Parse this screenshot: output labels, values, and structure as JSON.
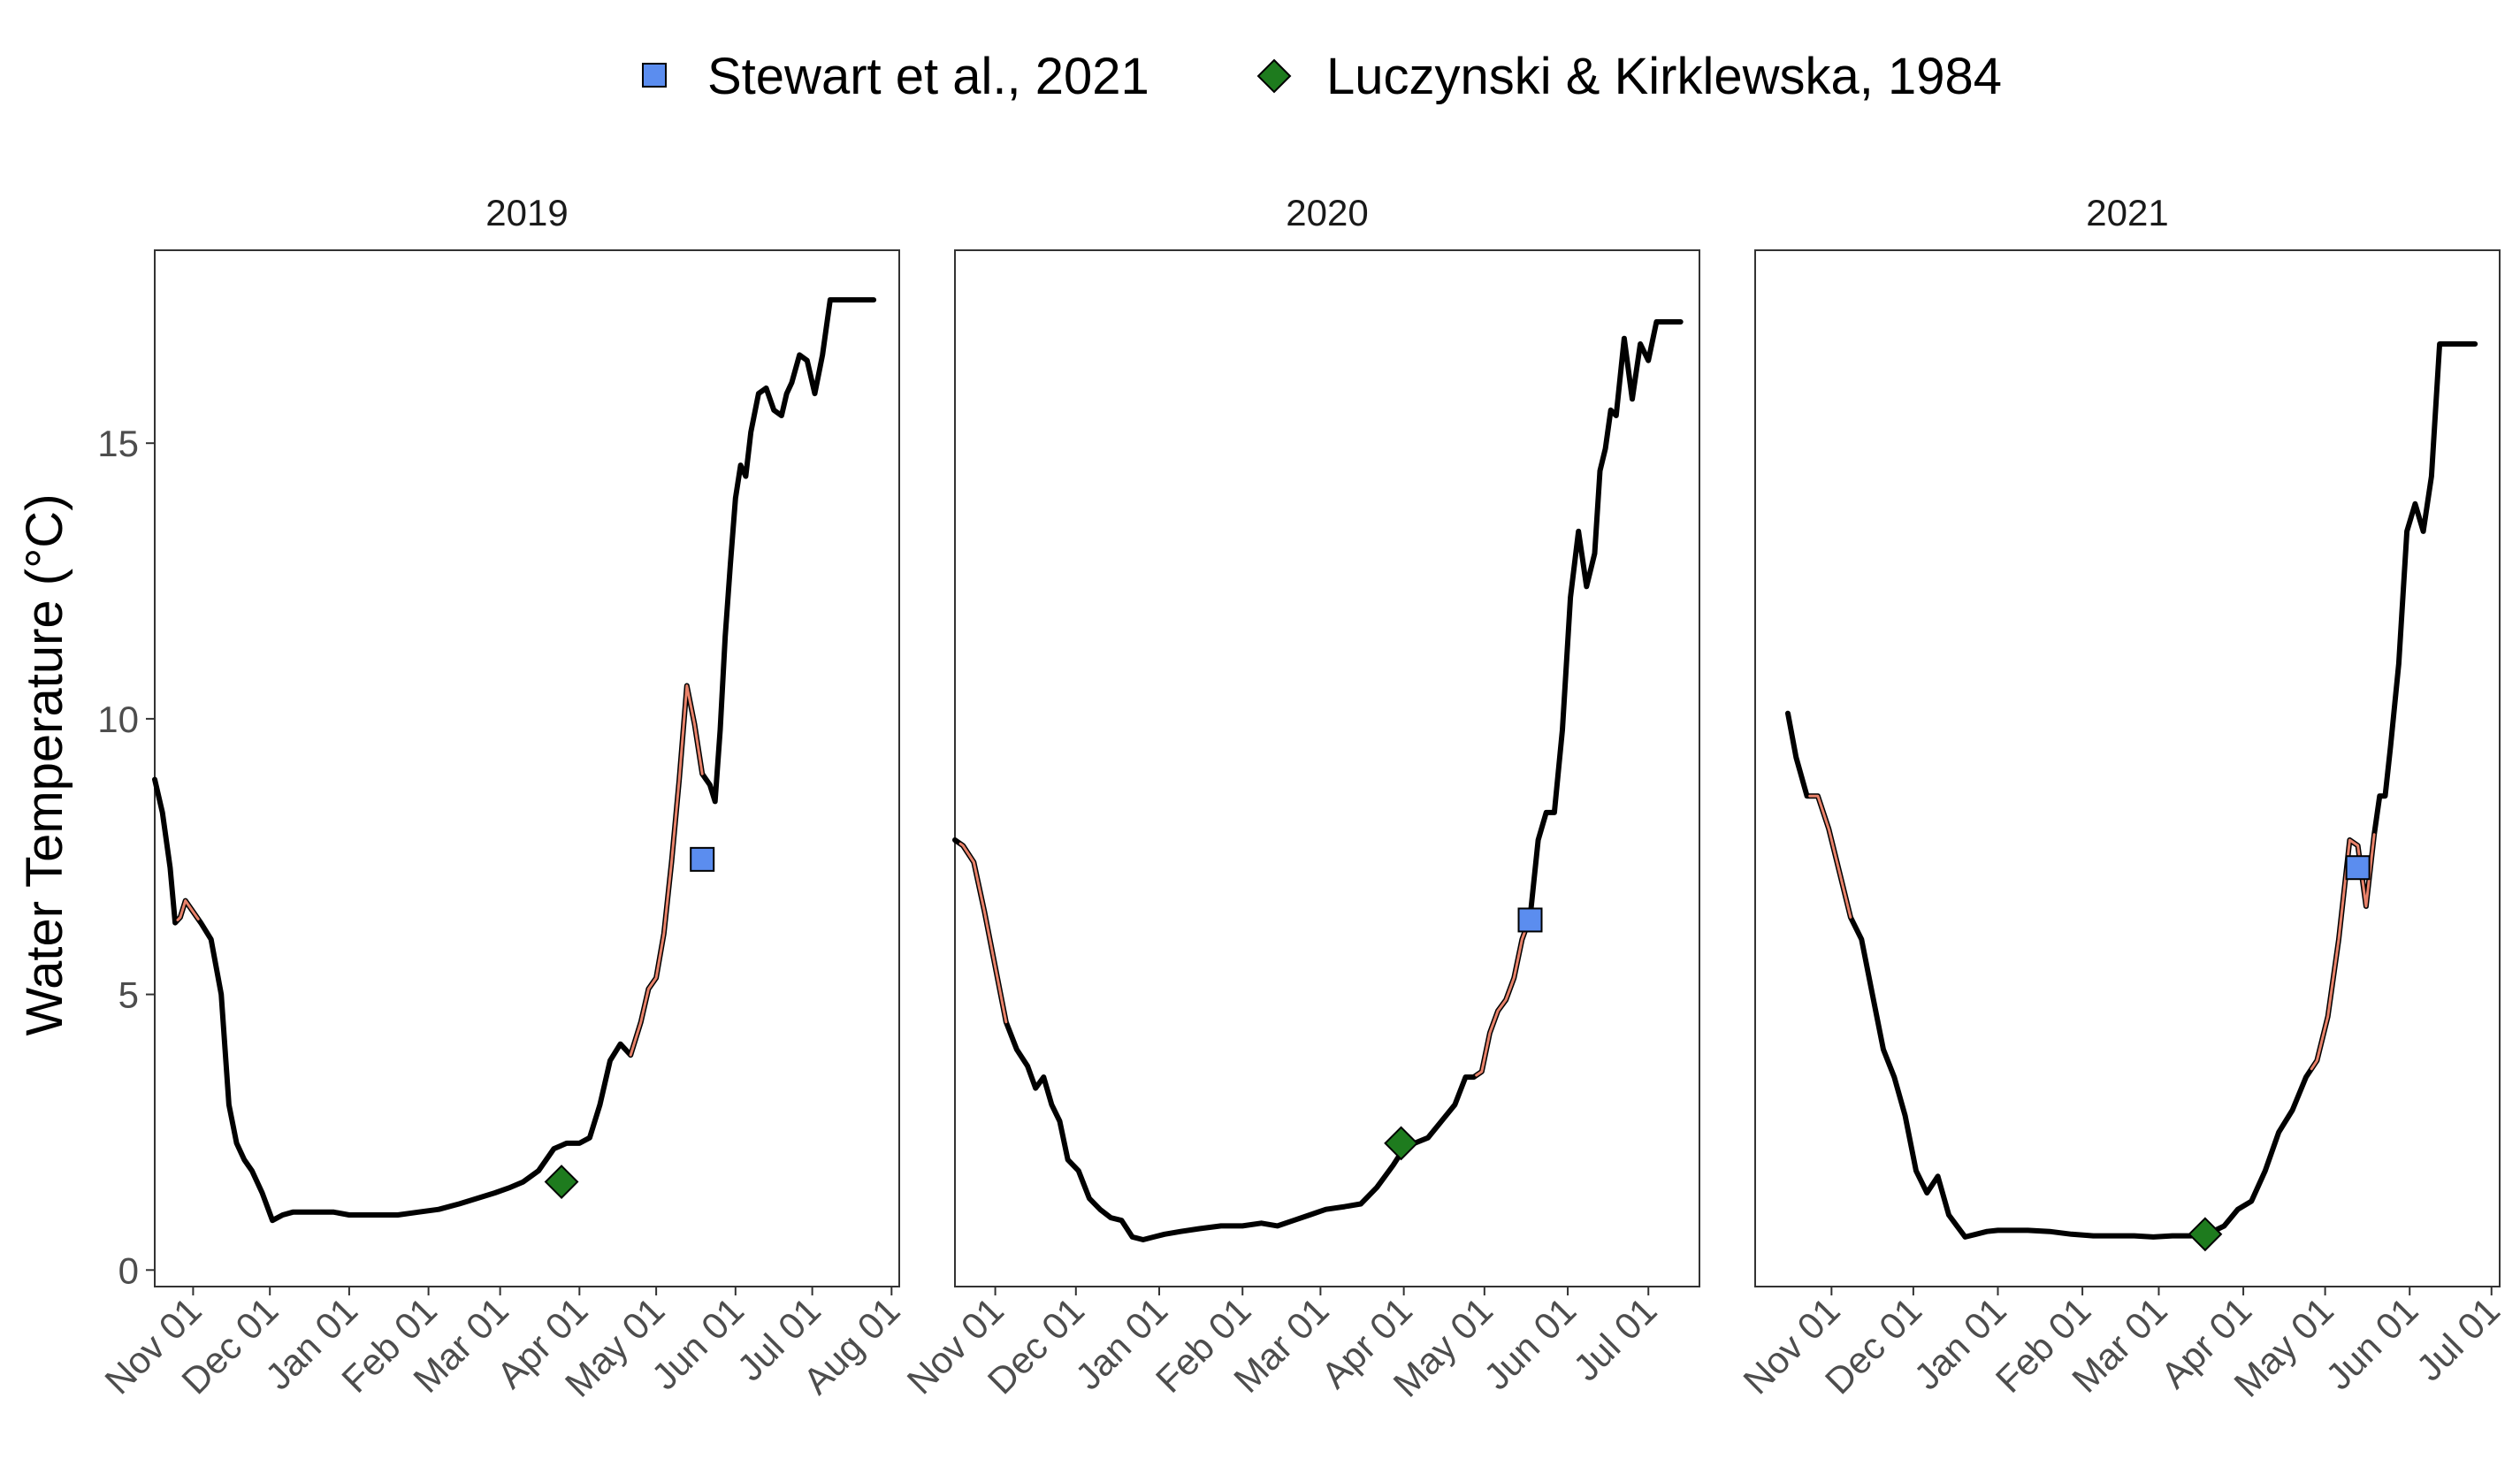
{
  "legend": {
    "items": [
      {
        "label": "Stewart et al., 2021",
        "marker": "square",
        "color": "#5B8DEF"
      },
      {
        "label": "Luczynski & Kirklewska, 1984",
        "marker": "diamond",
        "color": "#1E7B1E"
      }
    ]
  },
  "colors": {
    "line": "#000000",
    "highlight": "#E8826A",
    "panel_border": "#333333"
  },
  "chart_data": [
    {
      "type": "line",
      "title": "2019",
      "xlabel": "",
      "ylabel": "Water Temperature (°C)",
      "x_axis": "date",
      "ylim": [
        -0.3,
        18.5
      ],
      "xlim": [
        "2018-10-17",
        "2019-08-04"
      ],
      "y_ticks": [
        0,
        5,
        10,
        15
      ],
      "x_ticks": [
        {
          "date": "2018-11-01",
          "label": "Nov 01"
        },
        {
          "date": "2018-12-01",
          "label": "Dec 01"
        },
        {
          "date": "2019-01-01",
          "label": "Jan 01"
        },
        {
          "date": "2019-02-01",
          "label": "Feb 01"
        },
        {
          "date": "2019-03-01",
          "label": "Mar 01"
        },
        {
          "date": "2019-04-01",
          "label": "Apr 01"
        },
        {
          "date": "2019-05-01",
          "label": "May 01"
        },
        {
          "date": "2019-06-01",
          "label": "Jun 01"
        },
        {
          "date": "2019-07-01",
          "label": "Jul 01"
        },
        {
          "date": "2019-08-01",
          "label": "Aug 01"
        }
      ],
      "series": [
        {
          "x": [
            "2018-10-17",
            "2018-10-20",
            "2018-10-23",
            "2018-10-25",
            "2018-10-27",
            "2018-10-29",
            "2018-11-01",
            "2018-11-04",
            "2018-11-08",
            "2018-11-12",
            "2018-11-15",
            "2018-11-18",
            "2018-11-21",
            "2018-11-24",
            "2018-11-28",
            "2018-12-02",
            "2018-12-06",
            "2018-12-10",
            "2018-12-14",
            "2018-12-18",
            "2018-12-22",
            "2018-12-26",
            "2019-01-01",
            "2019-01-06",
            "2019-01-12",
            "2019-01-20",
            "2019-01-28",
            "2019-02-05",
            "2019-02-13",
            "2019-02-20",
            "2019-02-27",
            "2019-03-05",
            "2019-03-10",
            "2019-03-16",
            "2019-03-22",
            "2019-03-27",
            "2019-04-01",
            "2019-04-05",
            "2019-04-09",
            "2019-04-13",
            "2019-04-17",
            "2019-04-21",
            "2019-04-25",
            "2019-04-28",
            "2019-05-01",
            "2019-05-04",
            "2019-05-07",
            "2019-05-10",
            "2019-05-13",
            "2019-05-16",
            "2019-05-19",
            "2019-05-22",
            "2019-05-24",
            "2019-05-26",
            "2019-05-28",
            "2019-05-30",
            "2019-06-01",
            "2019-06-03",
            "2019-06-05",
            "2019-06-07",
            "2019-06-10",
            "2019-06-13",
            "2019-06-16",
            "2019-06-19",
            "2019-06-21",
            "2019-06-23",
            "2019-06-26",
            "2019-06-29",
            "2019-07-02",
            "2019-07-05",
            "2019-07-08",
            "2019-07-11",
            "2019-07-14",
            "2019-07-17",
            "2019-07-21",
            "2019-07-25"
          ],
          "y": [
            8.9,
            8.3,
            7.3,
            6.3,
            6.4,
            6.7,
            6.5,
            6.3,
            6.0,
            5.0,
            3.0,
            2.3,
            2.0,
            1.8,
            1.4,
            0.9,
            1.0,
            1.05,
            1.05,
            1.05,
            1.05,
            1.05,
            1.0,
            1.0,
            1.0,
            1.0,
            1.05,
            1.1,
            1.2,
            1.3,
            1.4,
            1.5,
            1.6,
            1.8,
            2.2,
            2.3,
            2.3,
            2.4,
            3.0,
            3.8,
            4.1,
            3.9,
            4.5,
            5.1,
            5.3,
            6.1,
            7.4,
            8.9,
            10.6,
            9.9,
            9.0,
            8.8,
            8.5,
            9.8,
            11.5,
            12.8,
            14.0,
            14.6,
            14.4,
            15.2,
            15.9,
            16.0,
            15.6,
            15.5,
            15.9,
            16.1,
            16.6,
            16.5,
            15.9,
            16.6,
            17.6,
            17.6,
            17.6,
            17.6,
            17.6,
            17.6
          ]
        },
        {
          "name": "",
          "x": [],
          "y": []
        }
      ],
      "highlight_segments": [
        {
          "x_start": "2018-10-26",
          "x_end": "2018-11-03"
        },
        {
          "x_start": "2019-04-21",
          "x_end": "2019-05-19"
        }
      ],
      "markers": [
        {
          "series": "Stewart et al., 2021",
          "x": "2019-05-19",
          "y": 7.45
        },
        {
          "series": "Luczynski & Kirklewska, 1984",
          "x": "2019-03-25",
          "y": 1.6
        }
      ]
    },
    {
      "type": "line",
      "title": "2020",
      "xlabel": "",
      "ylabel": "",
      "x_axis": "date",
      "ylim": [
        -0.3,
        18.5
      ],
      "xlim": [
        "2019-10-17",
        "2020-07-20"
      ],
      "y_ticks": [
        0,
        5,
        10,
        15
      ],
      "x_ticks": [
        {
          "date": "2019-11-01",
          "label": "Nov 01"
        },
        {
          "date": "2019-12-01",
          "label": "Dec 01"
        },
        {
          "date": "2020-01-01",
          "label": "Jan 01"
        },
        {
          "date": "2020-02-01",
          "label": "Feb 01"
        },
        {
          "date": "2020-03-01",
          "label": "Mar 01"
        },
        {
          "date": "2020-04-01",
          "label": "Apr 01"
        },
        {
          "date": "2020-05-01",
          "label": "May 01"
        },
        {
          "date": "2020-06-01",
          "label": "Jun 01"
        },
        {
          "date": "2020-07-01",
          "label": "Jul 01"
        }
      ],
      "series": [
        {
          "x": [
            "2019-10-17",
            "2019-10-20",
            "2019-10-24",
            "2019-10-28",
            "2019-11-01",
            "2019-11-05",
            "2019-11-09",
            "2019-11-13",
            "2019-11-16",
            "2019-11-19",
            "2019-11-22",
            "2019-11-25",
            "2019-11-28",
            "2019-12-02",
            "2019-12-06",
            "2019-12-10",
            "2019-12-14",
            "2019-12-18",
            "2019-12-22",
            "2019-12-26",
            "2019-12-30",
            "2020-01-03",
            "2020-01-09",
            "2020-01-16",
            "2020-01-24",
            "2020-02-01",
            "2020-02-08",
            "2020-02-14",
            "2020-02-20",
            "2020-02-26",
            "2020-03-03",
            "2020-03-10",
            "2020-03-16",
            "2020-03-22",
            "2020-03-28",
            "2020-04-01",
            "2020-04-05",
            "2020-04-10",
            "2020-04-15",
            "2020-04-20",
            "2020-04-24",
            "2020-04-27",
            "2020-04-30",
            "2020-05-03",
            "2020-05-06",
            "2020-05-09",
            "2020-05-12",
            "2020-05-15",
            "2020-05-18",
            "2020-05-21",
            "2020-05-24",
            "2020-05-27",
            "2020-05-30",
            "2020-06-02",
            "2020-06-05",
            "2020-06-08",
            "2020-06-11",
            "2020-06-13",
            "2020-06-15",
            "2020-06-17",
            "2020-06-19",
            "2020-06-22",
            "2020-06-25",
            "2020-06-28",
            "2020-07-01",
            "2020-07-04",
            "2020-07-07",
            "2020-07-10",
            "2020-07-13"
          ],
          "y": [
            7.8,
            7.7,
            7.4,
            6.5,
            5.5,
            4.5,
            4.0,
            3.7,
            3.3,
            3.5,
            3.0,
            2.7,
            2.0,
            1.8,
            1.3,
            1.1,
            0.95,
            0.9,
            0.6,
            0.55,
            0.6,
            0.65,
            0.7,
            0.75,
            0.8,
            0.8,
            0.85,
            0.8,
            0.9,
            1.0,
            1.1,
            1.15,
            1.2,
            1.5,
            1.9,
            2.2,
            2.3,
            2.4,
            2.7,
            3.0,
            3.5,
            3.5,
            3.6,
            4.3,
            4.7,
            4.9,
            5.3,
            6.0,
            6.4,
            7.8,
            8.3,
            8.3,
            9.8,
            12.2,
            13.4,
            12.4,
            13.0,
            14.5,
            14.9,
            15.6,
            15.5,
            16.9,
            15.8,
            16.8,
            16.5,
            17.2,
            17.2,
            17.2,
            17.2
          ]
        },
        {
          "name": "",
          "x": [],
          "y": []
        }
      ],
      "highlight_segments": [
        {
          "x_start": "2019-10-19",
          "x_end": "2019-11-05"
        },
        {
          "x_start": "2020-04-28",
          "x_end": "2020-05-18"
        }
      ],
      "markers": [
        {
          "series": "Stewart et al., 2021",
          "x": "2020-05-18",
          "y": 6.35
        },
        {
          "series": "Luczynski & Kirklewska, 1984",
          "x": "2020-03-31",
          "y": 2.3
        }
      ]
    },
    {
      "type": "line",
      "title": "2021",
      "xlabel": "",
      "ylabel": "",
      "x_axis": "date",
      "ylim": [
        -0.3,
        18.5
      ],
      "xlim": [
        "2020-10-04",
        "2021-07-04"
      ],
      "y_ticks": [
        0,
        5,
        10,
        15
      ],
      "x_ticks": [
        {
          "date": "2020-11-01",
          "label": "Nov 01"
        },
        {
          "date": "2020-12-01",
          "label": "Dec 01"
        },
        {
          "date": "2021-01-01",
          "label": "Jan 01"
        },
        {
          "date": "2021-02-01",
          "label": "Feb 01"
        },
        {
          "date": "2021-03-01",
          "label": "Mar 01"
        },
        {
          "date": "2021-04-01",
          "label": "Apr 01"
        },
        {
          "date": "2021-05-01",
          "label": "May 01"
        },
        {
          "date": "2021-06-01",
          "label": "Jun 01"
        },
        {
          "date": "2021-07-01",
          "label": "Jul 01"
        }
      ],
      "series": [
        {
          "x": [
            "2020-10-16",
            "2020-10-19",
            "2020-10-23",
            "2020-10-27",
            "2020-10-31",
            "2020-11-04",
            "2020-11-08",
            "2020-11-12",
            "2020-11-16",
            "2020-11-20",
            "2020-11-24",
            "2020-11-28",
            "2020-12-02",
            "2020-12-06",
            "2020-12-10",
            "2020-12-14",
            "2020-12-17",
            "2020-12-20",
            "2020-12-24",
            "2020-12-28",
            "2021-01-01",
            "2021-01-05",
            "2021-01-12",
            "2021-01-20",
            "2021-01-28",
            "2021-02-05",
            "2021-02-13",
            "2021-02-20",
            "2021-02-27",
            "2021-03-06",
            "2021-03-13",
            "2021-03-20",
            "2021-03-25",
            "2021-03-30",
            "2021-04-04",
            "2021-04-09",
            "2021-04-14",
            "2021-04-19",
            "2021-04-24",
            "2021-04-28",
            "2021-05-02",
            "2021-05-06",
            "2021-05-10",
            "2021-05-13",
            "2021-05-16",
            "2021-05-19",
            "2021-05-21",
            "2021-05-23",
            "2021-05-25",
            "2021-05-28",
            "2021-05-31",
            "2021-06-03",
            "2021-06-06",
            "2021-06-09",
            "2021-06-12",
            "2021-06-14",
            "2021-06-16",
            "2021-06-18",
            "2021-06-20",
            "2021-06-22",
            "2021-06-25"
          ],
          "y": [
            10.1,
            9.3,
            8.6,
            8.6,
            8.0,
            7.2,
            6.4,
            6.0,
            5.0,
            4.0,
            3.5,
            2.8,
            1.8,
            1.4,
            1.7,
            1.0,
            0.8,
            0.6,
            0.65,
            0.7,
            0.72,
            0.72,
            0.72,
            0.7,
            0.65,
            0.62,
            0.62,
            0.62,
            0.6,
            0.62,
            0.62,
            0.68,
            0.8,
            1.1,
            1.25,
            1.8,
            2.5,
            2.9,
            3.5,
            3.8,
            4.6,
            6.0,
            7.8,
            7.7,
            6.6,
            7.9,
            8.6,
            8.6,
            9.5,
            11.0,
            13.4,
            13.9,
            13.4,
            14.4,
            16.8,
            16.8,
            16.8,
            16.8,
            16.8,
            16.8,
            16.8
          ]
        },
        {
          "name": "",
          "x": [],
          "y": []
        }
      ],
      "highlight_segments": [
        {
          "x_start": "2020-10-24",
          "x_end": "2020-11-08"
        },
        {
          "x_start": "2021-04-26",
          "x_end": "2021-05-19"
        }
      ],
      "markers": [
        {
          "series": "Stewart et al., 2021",
          "x": "2021-05-13",
          "y": 7.3
        },
        {
          "series": "Luczynski & Kirklewska, 1984",
          "x": "2021-03-18",
          "y": 0.65
        }
      ]
    }
  ]
}
